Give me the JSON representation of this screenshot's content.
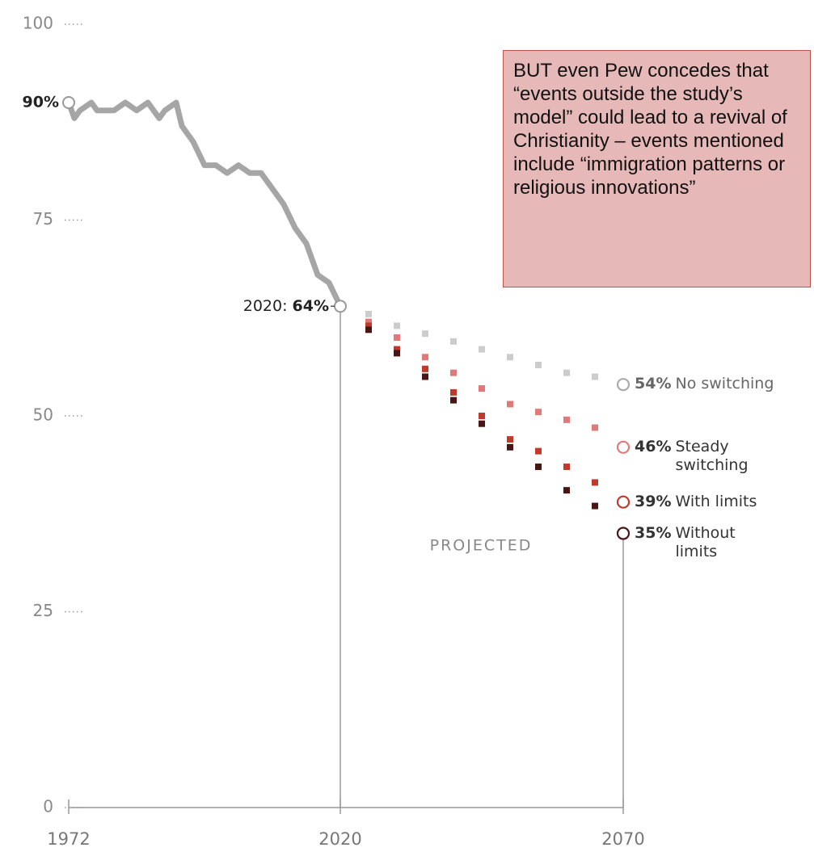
{
  "chart_data": {
    "type": "line",
    "xlim": [
      1972,
      2070
    ],
    "ylim": [
      0,
      100
    ],
    "xticks": [
      1972,
      2020,
      2070
    ],
    "yticks": [
      0,
      25,
      50,
      75,
      100
    ],
    "history": {
      "color": "#a6a6a6",
      "x": [
        1972,
        1973,
        1974,
        1976,
        1977,
        1980,
        1982,
        1984,
        1986,
        1988,
        1989,
        1991,
        1992,
        1994,
        1996,
        1998,
        2000,
        2002,
        2004,
        2006,
        2008,
        2010,
        2012,
        2014,
        2016,
        2018,
        2020
      ],
      "values": [
        90,
        88,
        89,
        90,
        89,
        89,
        90,
        89,
        90,
        88,
        89,
        90,
        87,
        85,
        82,
        82,
        81,
        82,
        81,
        81,
        79,
        77,
        74,
        72,
        68,
        67,
        64
      ],
      "start_label": "90%",
      "end_annotation": "2020:",
      "end_label": "64%"
    },
    "projections": {
      "x": [
        2025,
        2030,
        2035,
        2040,
        2045,
        2050,
        2055,
        2060,
        2065
      ],
      "end_x": 2070,
      "series": [
        {
          "name": "No switching",
          "color": "#cccccc",
          "values": [
            63,
            61.5,
            60.5,
            59.5,
            58.5,
            57.5,
            56.5,
            55.5,
            55
          ],
          "end_value": 54,
          "end_label": "54%"
        },
        {
          "name": "Steady switching",
          "color": "#e07a7a",
          "values": [
            62,
            60,
            57.5,
            55.5,
            53.5,
            51.5,
            50.5,
            49.5,
            48.5
          ],
          "end_value": 46,
          "end_label": "46%"
        },
        {
          "name": "With limits",
          "color": "#c0392b",
          "values": [
            61.5,
            58.5,
            56,
            53,
            50,
            47,
            45.5,
            43.5,
            41.5
          ],
          "end_value": 39,
          "end_label": "39%"
        },
        {
          "name": "Without limits",
          "color": "#4a1515",
          "values": [
            61,
            58,
            55,
            52,
            49,
            46,
            43.5,
            40.5,
            38.5
          ],
          "end_value": 35,
          "end_label": "35%"
        }
      ]
    },
    "annotation": "PROJECTED",
    "callout": "BUT even Pew concedes that “events outside the study’s model” could lead to a revival of Christianity – events mentioned include “immigration patterns or religious innovations”"
  }
}
